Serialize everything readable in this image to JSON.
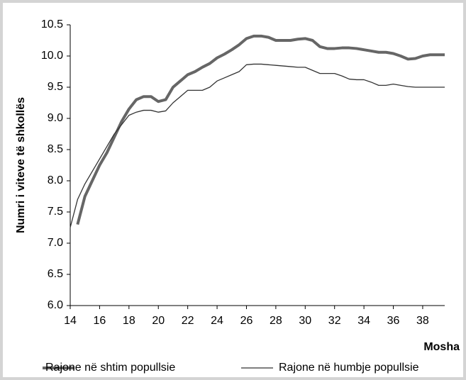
{
  "chart_data": {
    "type": "line",
    "x_label": "Mosha",
    "y_label": "Numri i viteve të shkollës",
    "x": [
      14,
      14.5,
      15,
      15.5,
      16,
      16.5,
      17,
      17.5,
      18,
      18.5,
      19,
      19.5,
      20,
      20.5,
      21,
      21.5,
      22,
      22.5,
      23,
      23.5,
      24,
      24.5,
      25,
      25.5,
      26,
      26.5,
      27,
      27.5,
      28,
      28.5,
      29,
      29.5,
      30,
      30.5,
      31,
      31.5,
      32,
      32.5,
      33,
      33.5,
      34,
      34.5,
      35,
      35.5,
      36,
      36.5,
      37,
      37.5,
      38,
      38.5,
      39,
      39.5
    ],
    "series": [
      {
        "name": "Rajone në shtim popullsie",
        "color": "#666666",
        "width": 4,
        "values": [
          null,
          7.3,
          7.75,
          8.0,
          8.25,
          8.45,
          8.7,
          8.95,
          9.15,
          9.3,
          9.35,
          9.35,
          9.27,
          9.3,
          9.5,
          9.6,
          9.7,
          9.75,
          9.82,
          9.88,
          9.97,
          10.03,
          10.1,
          10.18,
          10.28,
          10.32,
          10.32,
          10.3,
          10.25,
          10.25,
          10.25,
          10.27,
          10.28,
          10.25,
          10.15,
          10.12,
          10.12,
          10.13,
          10.13,
          10.12,
          10.1,
          10.08,
          10.06,
          10.06,
          10.04,
          10.0,
          9.95,
          9.96,
          10.0,
          10.02,
          10.02,
          10.02
        ]
      },
      {
        "name": "Rajone në humbje popullsie",
        "color": "#333333",
        "width": 1.3,
        "values": [
          7.25,
          7.7,
          7.95,
          8.15,
          8.35,
          8.55,
          8.75,
          8.9,
          9.05,
          9.1,
          9.13,
          9.13,
          9.1,
          9.12,
          9.25,
          9.35,
          9.45,
          9.45,
          9.45,
          9.5,
          9.6,
          9.65,
          9.7,
          9.75,
          9.86,
          9.87,
          9.87,
          9.86,
          9.85,
          9.84,
          9.83,
          9.82,
          9.82,
          9.77,
          9.72,
          9.72,
          9.72,
          9.68,
          9.63,
          9.62,
          9.62,
          9.58,
          9.53,
          9.53,
          9.55,
          9.53,
          9.51,
          9.5,
          9.5,
          9.5,
          9.5,
          9.5
        ]
      }
    ],
    "xlim": [
      14,
      39.5
    ],
    "xticks": [
      14,
      16,
      18,
      20,
      22,
      24,
      26,
      28,
      30,
      32,
      34,
      36,
      38
    ],
    "ylim": [
      6.0,
      10.5
    ],
    "yticks": [
      {
        "value": 6.0,
        "label": "6.0"
      },
      {
        "value": 6.5,
        "label": "6.5"
      },
      {
        "value": 7.0,
        "label": "7.0"
      },
      {
        "value": 7.5,
        "label": "7.5"
      },
      {
        "value": 8.0,
        "label": "8.0"
      },
      {
        "value": 8.5,
        "label": "8.5"
      },
      {
        "value": 9.0,
        "label": "9.0"
      },
      {
        "value": 9.5,
        "label": "9.5"
      },
      {
        "value": 10.0,
        "label": "10.0"
      },
      {
        "value": 10.5,
        "label": "10.5"
      }
    ],
    "grid": false,
    "legend": "bottom"
  }
}
